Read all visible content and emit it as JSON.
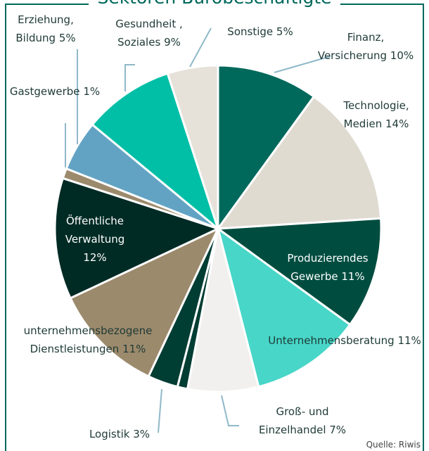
{
  "chart_data": {
    "type": "pie",
    "title": "Sektoren Bürobeschäftigte",
    "source": "Quelle: Riwis",
    "categories": [
      "Finanz, Versicherung",
      "Technologie, Medien",
      "Produzierendes Gewerbe",
      "Unternehmensberatung",
      "Groß- und Einzelhandel",
      null,
      "Logistik",
      "unternehmensbezogene Dienstleistungen",
      "Öffentliche Verwaltung",
      "Gastgewerbe",
      "Erziehung, Bildung",
      "Gesundheit , Soziales",
      "Sonstige"
    ],
    "values": [
      10,
      14,
      11,
      11,
      7,
      1,
      3,
      11,
      12,
      1,
      5,
      9,
      5
    ],
    "value_labels": [
      "10%",
      "14%",
      "11%",
      "11%",
      "7%",
      null,
      "3%",
      "11%",
      "12%",
      "1%",
      "5%",
      "9%",
      "5%"
    ],
    "colors": [
      "#00695c",
      "#e0dbd1",
      "#004d40",
      "#48d6c8",
      "#f2f0ee",
      "#003d33",
      "#003d33",
      "#9c8a6c",
      "#002b25",
      "#9c8a6c",
      "#62a3c3",
      "#00bfa6",
      "#e6e1d9"
    ]
  }
}
